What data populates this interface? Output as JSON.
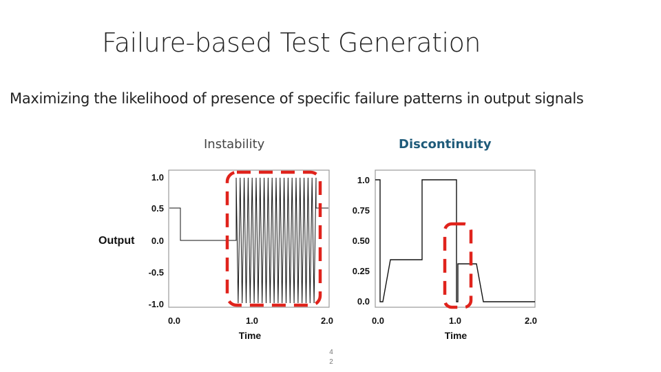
{
  "slide": {
    "title": "Failure-based Test Generation",
    "subtitle": "Maximizing the likelihood of presence of specific failure patterns in output signals",
    "left_label": "Instability",
    "right_label": "Discontinuity",
    "y_axis_label": "Output",
    "page_number": [
      "4",
      "2"
    ]
  },
  "colors": {
    "highlight": "#e0231c",
    "discontinuity_label": "#1f5b7a",
    "signal": "#111111"
  },
  "charts": {
    "instability": {
      "x_ticks": [
        "0.0",
        "1.0",
        "2.0"
      ],
      "y_ticks": [
        "1.0",
        "0.5",
        "0.0",
        "-0.5",
        "-1.0"
      ],
      "x_label": "Time"
    },
    "discontinuity": {
      "x_ticks": [
        "0.0",
        "1.0",
        "2.0"
      ],
      "y_ticks": [
        "1.0",
        "0.75",
        "0.50",
        "0.25",
        "0.0"
      ],
      "x_label": "Time"
    }
  }
}
